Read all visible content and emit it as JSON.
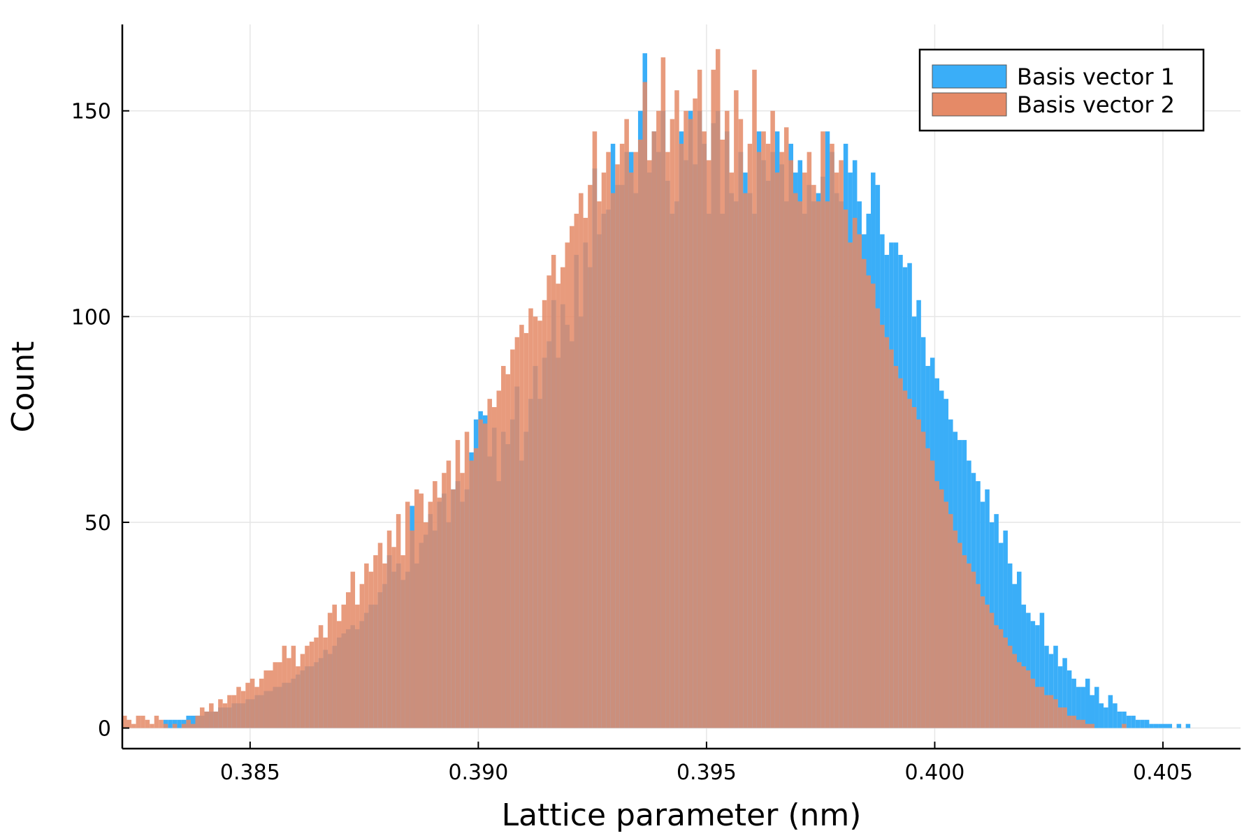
{
  "chart_data": {
    "type": "bar",
    "subtype": "overlaid-histogram",
    "xlabel": "Lattice parameter (nm)",
    "ylabel": "Count",
    "xlim": [
      0.3822,
      0.4067
    ],
    "ylim": [
      -5,
      171
    ],
    "xticks": [
      {
        "value": 0.385,
        "label": "0.385"
      },
      {
        "value": 0.39,
        "label": "0.390"
      },
      {
        "value": 0.395,
        "label": "0.395"
      },
      {
        "value": 0.4,
        "label": "0.400"
      },
      {
        "value": 0.405,
        "label": "0.405"
      }
    ],
    "yticks": [
      {
        "value": 0,
        "label": "0"
      },
      {
        "value": 50,
        "label": "50"
      },
      {
        "value": 100,
        "label": "100"
      },
      {
        "value": 150,
        "label": "150"
      }
    ],
    "grid": true,
    "legend_position": "top-right",
    "bin_start": 0.3822,
    "bin_width": 0.0001,
    "series": [
      {
        "name": "Basis vector 1",
        "color": "#3aaef8",
        "values": [
          0,
          0,
          0,
          0,
          0,
          0,
          0,
          0,
          0,
          2,
          2,
          2,
          2,
          2,
          3,
          3,
          3,
          3,
          4,
          4,
          4,
          5,
          5,
          5,
          6,
          6,
          6,
          7,
          7,
          8,
          8,
          9,
          9,
          10,
          10,
          11,
          11,
          12,
          13,
          14,
          15,
          15,
          16,
          17,
          19,
          18,
          20,
          22,
          23,
          24,
          25,
          24,
          26,
          28,
          30,
          30,
          33,
          35,
          42,
          38,
          40,
          36,
          38,
          54,
          40,
          45,
          47,
          52,
          48,
          55,
          57,
          50,
          58,
          60,
          55,
          58,
          67,
          75,
          77,
          76,
          66,
          73,
          60,
          72,
          69,
          75,
          83,
          65,
          72,
          80,
          88,
          80,
          90,
          94,
          104,
          90,
          103,
          98,
          94,
          115,
          100,
          118,
          112,
          136,
          120,
          125,
          126,
          142,
          132,
          132,
          140,
          140,
          130,
          150,
          164,
          135,
          145,
          140,
          150,
          133,
          125,
          128,
          145,
          138,
          150,
          137,
          150,
          142,
          125,
          147,
          150,
          125,
          145,
          130,
          128,
          140,
          135,
          130,
          125,
          145,
          138,
          133,
          140,
          145,
          137,
          128,
          142,
          135,
          138,
          125,
          132,
          128,
          130,
          134,
          145,
          140,
          130,
          128,
          142,
          135,
          138,
          128,
          120,
          125,
          135,
          132,
          120,
          115,
          118,
          118,
          115,
          112,
          113,
          100,
          104,
          95,
          88,
          90,
          85,
          82,
          80,
          75,
          72,
          70,
          70,
          65,
          62,
          60,
          55,
          58,
          50,
          52,
          45,
          48,
          40,
          35,
          38,
          30,
          28,
          26,
          25,
          28,
          20,
          18,
          20,
          15,
          17,
          14,
          12,
          10,
          10,
          12,
          8,
          10,
          6,
          5,
          8,
          6,
          4,
          4,
          3,
          3,
          2,
          2,
          2,
          1,
          1,
          1,
          1,
          1,
          0,
          1,
          0,
          1,
          0,
          0,
          0,
          0,
          0
        ]
      },
      {
        "name": "Basis vector 2",
        "color": "#e58a67",
        "values": [
          3,
          2,
          1,
          3,
          3,
          2,
          1,
          3,
          2,
          1,
          0,
          1,
          0,
          1,
          2,
          1,
          3,
          5,
          4,
          6,
          4,
          7,
          6,
          8,
          8,
          10,
          9,
          11,
          12,
          10,
          12,
          14,
          14,
          16,
          16,
          20,
          17,
          20,
          15,
          18,
          20,
          21,
          22,
          25,
          22,
          28,
          30,
          26,
          30,
          33,
          38,
          30,
          35,
          40,
          38,
          42,
          45,
          40,
          48,
          44,
          52,
          42,
          55,
          48,
          58,
          57,
          50,
          55,
          60,
          56,
          62,
          65,
          58,
          70,
          62,
          72,
          65,
          68,
          75,
          74,
          80,
          78,
          82,
          88,
          86,
          92,
          95,
          98,
          96,
          102,
          100,
          99,
          104,
          110,
          115,
          108,
          112,
          118,
          122,
          125,
          130,
          124,
          132,
          145,
          128,
          135,
          140,
          130,
          137,
          142,
          148,
          135,
          140,
          143,
          157,
          138,
          145,
          150,
          163,
          140,
          148,
          155,
          142,
          150,
          148,
          153,
          160,
          145,
          138,
          160,
          165,
          143,
          150,
          135,
          155,
          148,
          130,
          142,
          160,
          140,
          145,
          142,
          150,
          135,
          140,
          146,
          138,
          130,
          128,
          135,
          140,
          132,
          128,
          145,
          128,
          142,
          135,
          138,
          126,
          118,
          124,
          120,
          114,
          110,
          108,
          102,
          98,
          95,
          92,
          88,
          85,
          82,
          80,
          78,
          75,
          72,
          68,
          65,
          60,
          58,
          55,
          52,
          48,
          45,
          42,
          40,
          38,
          35,
          32,
          30,
          28,
          25,
          24,
          22,
          20,
          18,
          16,
          15,
          14,
          12,
          10,
          10,
          8,
          8,
          7,
          5,
          5,
          3,
          3,
          2,
          2,
          1,
          1,
          0,
          0,
          0,
          0,
          0,
          0,
          1
        ]
      }
    ]
  }
}
